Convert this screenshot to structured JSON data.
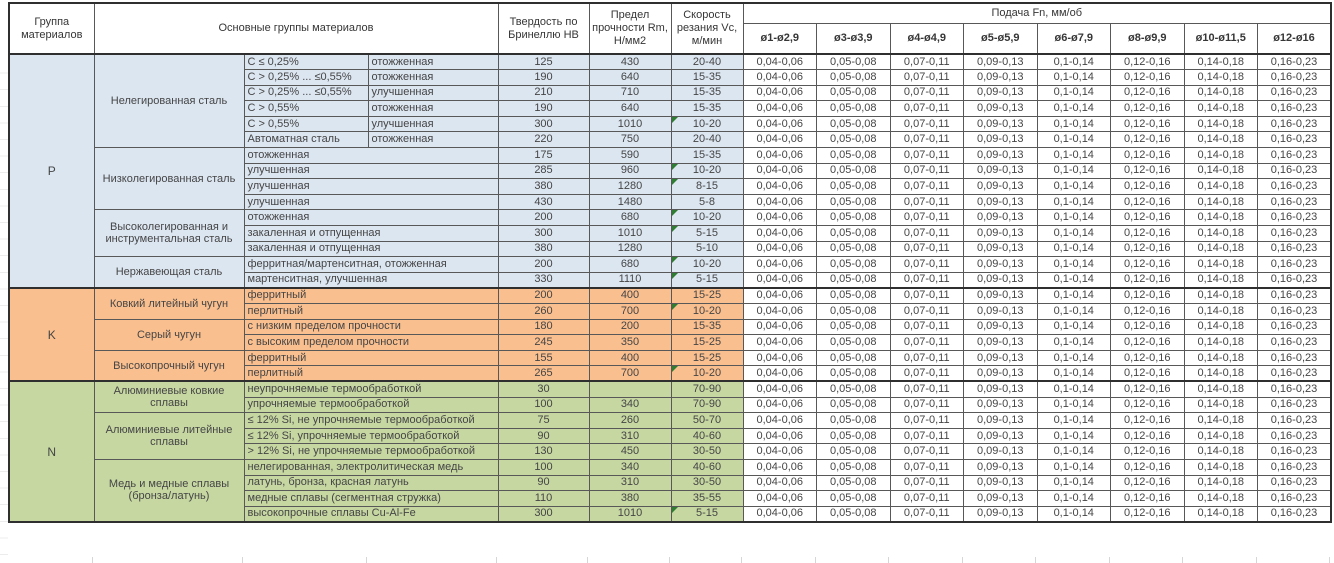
{
  "header": {
    "col_group": "Группа материалов",
    "col_main_groups": "Основные группы материалов",
    "col_hardness": "Твердость по Бринеллю HB",
    "col_strength": "Предел прочности Rm, Н/мм2",
    "col_speed": "Скорость резания Vc, м/мин",
    "feed_title": "Подача Fn, мм/об",
    "feed_cols": [
      "ø1-ø2,9",
      "ø3-ø3,9",
      "ø4-ø4,9",
      "ø5-ø5,9",
      "ø6-ø7,9",
      "ø8-ø9,9",
      "ø10-ø11,5",
      "ø12-ø16"
    ]
  },
  "feed_values": [
    "0,04-0,06",
    "0,05-0,08",
    "0,07-0,11",
    "0,09-0,13",
    "0,1-0,14",
    "0,12-0,16",
    "0,14-0,18",
    "0,16-0,23"
  ],
  "colors": {
    "section_p": "#dce6f1",
    "section_k": "#fabf8f",
    "section_n": "#c6d7a2",
    "feed_bg": "#ffffff",
    "marker_green": "#2e7d32"
  },
  "groups": [
    {
      "letter": "P",
      "key": "p",
      "subgroups": [
        {
          "name": "Нелегированная сталь",
          "rows": [
            {
              "cols": [
                "C ≤ 0,25%",
                "отожженная"
              ],
              "hb": "125",
              "rm": "430",
              "vc": "20-40",
              "flag": false
            },
            {
              "cols": [
                "C > 0,25% ... ≤0,55%",
                "отожженная"
              ],
              "hb": "190",
              "rm": "640",
              "vc": "15-35",
              "flag": false
            },
            {
              "cols": [
                "C > 0,25% ... ≤0,55%",
                "улучшенная"
              ],
              "hb": "210",
              "rm": "710",
              "vc": "15-35",
              "flag": false
            },
            {
              "cols": [
                "C > 0,55%",
                "отожженная"
              ],
              "hb": "190",
              "rm": "640",
              "vc": "15-35",
              "flag": false
            },
            {
              "cols": [
                "C > 0,55%",
                "улучшенная"
              ],
              "hb": "300",
              "rm": "1010",
              "vc": "10-20",
              "flag": true
            },
            {
              "cols": [
                "Автоматная сталь",
                "отожженная"
              ],
              "hb": "220",
              "rm": "750",
              "vc": "20-40",
              "flag": false
            }
          ]
        },
        {
          "name": "Низколегированная сталь",
          "rows": [
            {
              "material": "отожженная",
              "hb": "175",
              "rm": "590",
              "vc": "15-35",
              "flag": false
            },
            {
              "material": "улучшенная",
              "hb": "285",
              "rm": "960",
              "vc": "10-20",
              "flag": true
            },
            {
              "material": "улучшенная",
              "hb": "380",
              "rm": "1280",
              "vc": "8-15",
              "flag": true
            },
            {
              "material": "улучшенная",
              "hb": "430",
              "rm": "1480",
              "vc": "5-8",
              "flag": false
            }
          ]
        },
        {
          "name": "Высоколегированная и инструментальная сталь",
          "rows": [
            {
              "material": "отожженная",
              "hb": "200",
              "rm": "680",
              "vc": "10-20",
              "flag": true
            },
            {
              "material": "закаленная и отпущенная",
              "hb": "300",
              "rm": "1010",
              "vc": "5-15",
              "flag": true
            },
            {
              "material": "закаленная и отпущенная",
              "hb": "380",
              "rm": "1280",
              "vc": "5-10",
              "flag": false
            }
          ]
        },
        {
          "name": "Нержавеющая сталь",
          "rows": [
            {
              "material": "ферритная/мартенситная, отожженная",
              "hb": "200",
              "rm": "680",
              "vc": "10-20",
              "flag": true
            },
            {
              "material": "мартенситная, улучшенная",
              "hb": "330",
              "rm": "1110",
              "vc": "5-15",
              "flag": true
            }
          ]
        }
      ]
    },
    {
      "letter": "K",
      "key": "k",
      "subgroups": [
        {
          "name": "Ковкий литейный чугун",
          "rows": [
            {
              "material": "ферритный",
              "hb": "200",
              "rm": "400",
              "vc": "15-25",
              "flag": false
            },
            {
              "material": "перлитный",
              "hb": "260",
              "rm": "700",
              "vc": "10-20",
              "flag": true
            }
          ]
        },
        {
          "name": "Серый чугун",
          "rows": [
            {
              "material": "с низким пределом прочности",
              "hb": "180",
              "rm": "200",
              "vc": "15-35",
              "flag": false
            },
            {
              "material": "с высоким пределом прочности",
              "hb": "245",
              "rm": "350",
              "vc": "15-25",
              "flag": false
            }
          ]
        },
        {
          "name": "Высокопрочный чугун",
          "rows": [
            {
              "material": "ферритный",
              "hb": "155",
              "rm": "400",
              "vc": "15-25",
              "flag": false
            },
            {
              "material": "перлитный",
              "hb": "265",
              "rm": "700",
              "vc": "10-20",
              "flag": true
            }
          ]
        }
      ]
    },
    {
      "letter": "N",
      "key": "n",
      "subgroups": [
        {
          "name": "Алюминиевые ковкие сплавы",
          "rows": [
            {
              "material": "неупрочняемые термообработкой",
              "hb": "30",
              "rm": "",
              "vc": "70-90",
              "flag": false
            },
            {
              "material": "упрочняемые термообработкой",
              "hb": "100",
              "rm": "340",
              "vc": "70-90",
              "flag": false
            }
          ]
        },
        {
          "name": "Алюминиевые литейные сплавы",
          "rows": [
            {
              "material": "≤ 12% Si, не упрочняемые термообработкой",
              "hb": "75",
              "rm": "260",
              "vc": "50-70",
              "flag": false
            },
            {
              "material": "≤ 12% Si, упрочняемые термообработкой",
              "hb": "90",
              "rm": "310",
              "vc": "40-60",
              "flag": false
            },
            {
              "material": "> 12% Si, не упрочняемые термообработкой",
              "hb": "130",
              "rm": "450",
              "vc": "30-50",
              "flag": false
            }
          ]
        },
        {
          "name": "Медь и медные сплавы (бронза/латунь)",
          "rows": [
            {
              "material": "нелегированная, электролитическая медь",
              "hb": "100",
              "rm": "340",
              "vc": "40-60",
              "flag": false
            },
            {
              "material": "латунь, бронза, красная латунь",
              "hb": "90",
              "rm": "310",
              "vc": "30-50",
              "flag": false
            },
            {
              "material": "медные сплавы (сегментная стружка)",
              "hb": "110",
              "rm": "380",
              "vc": "35-55",
              "flag": false
            },
            {
              "material": "высокопрочные сплавы Cu-Al-Fe",
              "hb": "300",
              "rm": "1010",
              "vc": "5-15",
              "flag": true
            }
          ]
        }
      ]
    }
  ]
}
